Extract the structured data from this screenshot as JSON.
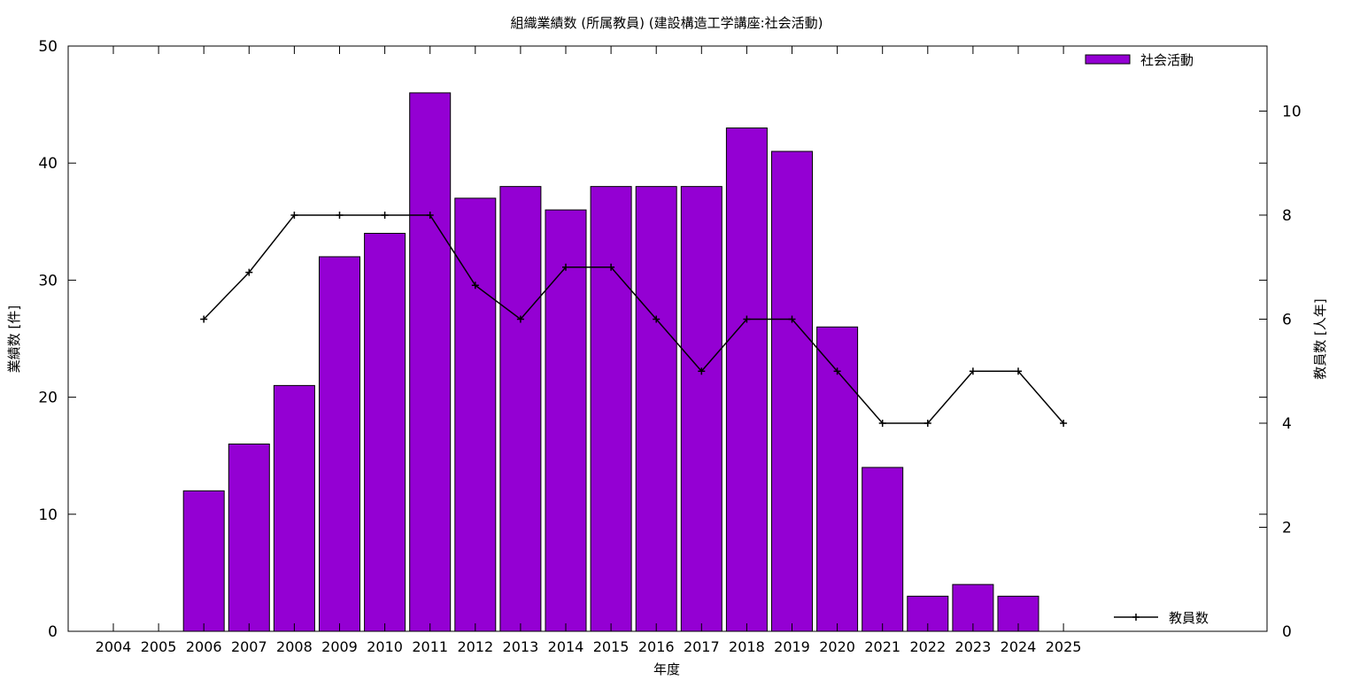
{
  "chart_data": {
    "type": "bar",
    "title": "組織業績数 (所属教員) (建設構造工学講座:社会活動)",
    "xlabel": "年度",
    "ylabel": "業績数 [件]",
    "y2label": "教員数 [人年]",
    "categories": [
      "2004",
      "2005",
      "2006",
      "2007",
      "2008",
      "2009",
      "2010",
      "2011",
      "2012",
      "2013",
      "2014",
      "2015",
      "2016",
      "2017",
      "2018",
      "2019",
      "2020",
      "2021",
      "2022",
      "2023",
      "2024",
      "2025"
    ],
    "series": [
      {
        "name": "社会活動",
        "type": "bar",
        "axis": "left",
        "color": "#9400d3",
        "values": [
          null,
          null,
          12,
          16,
          21,
          32,
          34,
          46,
          37,
          38,
          36,
          38,
          38,
          38,
          43,
          41,
          26,
          14,
          3,
          4,
          3,
          null
        ]
      },
      {
        "name": "教員数",
        "type": "line",
        "axis": "right",
        "color": "#000000",
        "values": [
          null,
          null,
          6,
          6.9,
          8,
          8,
          8,
          8,
          6.65,
          6,
          7,
          7,
          6,
          5,
          6,
          6,
          5,
          4,
          4,
          5,
          5,
          4
        ]
      }
    ],
    "ylim": [
      0,
      50
    ],
    "yticks": [
      0,
      10,
      20,
      30,
      40,
      50
    ],
    "y2lim": [
      0,
      11.25
    ],
    "y2ticks": [
      0,
      2,
      4,
      6,
      8,
      10
    ],
    "legend_bar_position": "top-right",
    "legend_line_position": "bottom-right",
    "grid": false
  }
}
